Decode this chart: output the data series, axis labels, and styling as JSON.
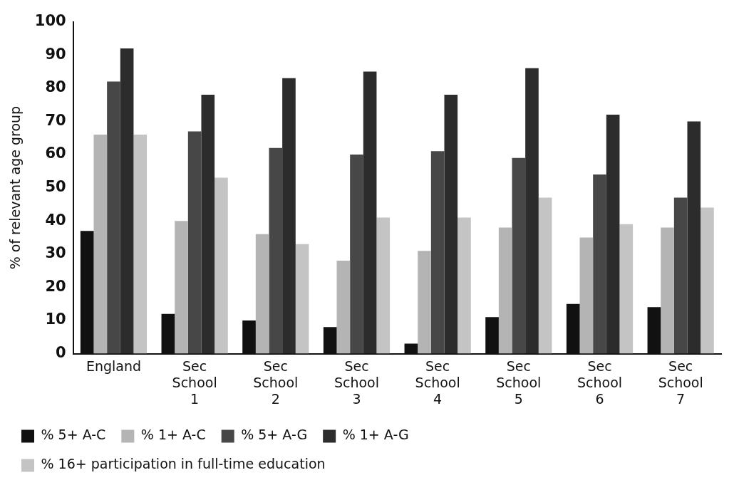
{
  "chart_data": {
    "type": "bar",
    "ylabel": "% of relevant age group",
    "categories": [
      "England",
      "Sec School 1",
      "Sec School 2",
      "Sec School 3",
      "Sec School 4",
      "Sec School 5",
      "Sec School 6",
      "Sec School 7"
    ],
    "series": [
      {
        "name": "% 5+ A-C",
        "color": "#111111",
        "values": [
          37,
          12,
          10,
          8,
          3,
          11,
          15,
          14
        ]
      },
      {
        "name": "% 1+ A-C",
        "color": "#b4b4b4",
        "values": [
          66,
          40,
          36,
          28,
          31,
          38,
          35,
          38
        ]
      },
      {
        "name": "% 5+ A-G",
        "color": "#474747",
        "values": [
          82,
          67,
          62,
          60,
          61,
          59,
          54,
          47
        ]
      },
      {
        "name": "% 1+ A-G",
        "color": "#2c2c2c",
        "values": [
          92,
          78,
          83,
          85,
          78,
          86,
          72,
          70
        ]
      },
      {
        "name": "% 16+ participation in full-time education",
        "color": "#c4c4c4",
        "values": [
          66,
          53,
          33,
          41,
          41,
          47,
          39,
          44
        ]
      }
    ],
    "ylim": [
      0,
      100
    ],
    "yticks": [
      0,
      10,
      20,
      30,
      40,
      50,
      60,
      70,
      80,
      90,
      100
    ],
    "grid": false,
    "legend": "bottom left"
  }
}
